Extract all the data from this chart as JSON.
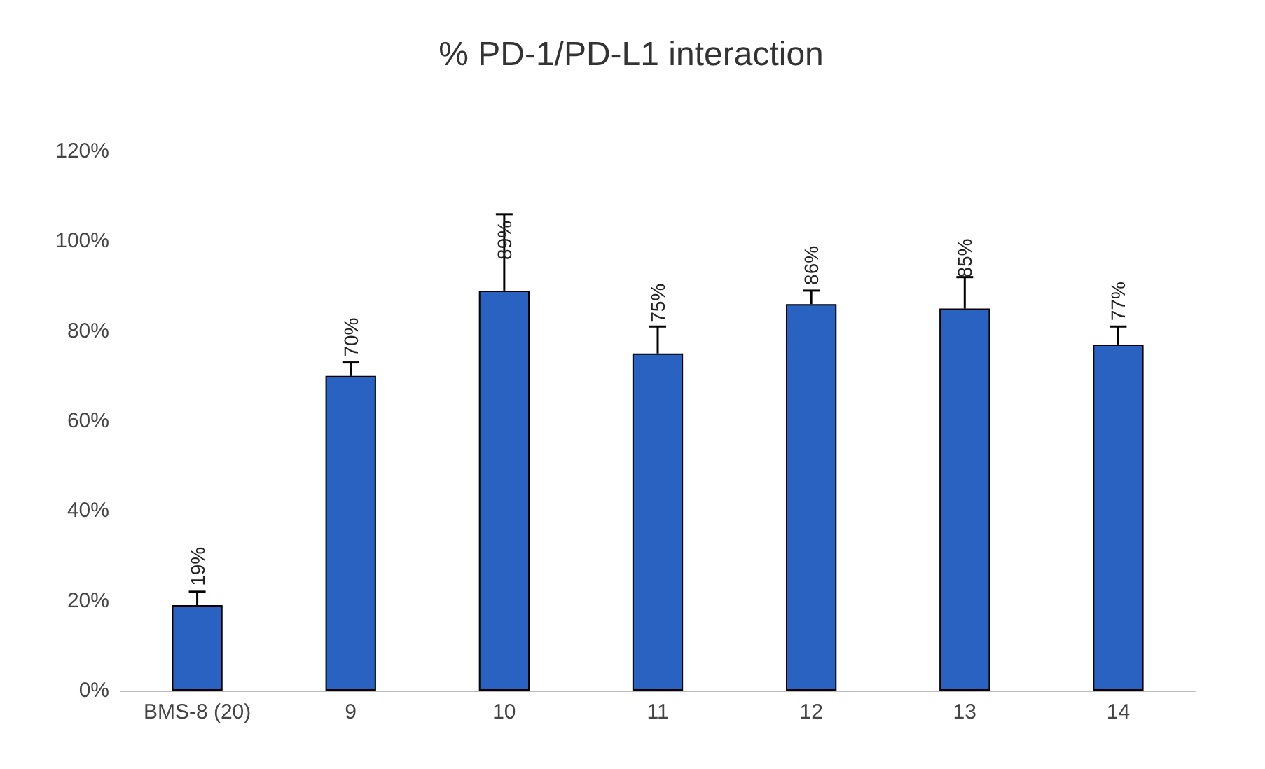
{
  "chart_data": {
    "type": "bar",
    "title": "% PD-1/PD-L1 interaction",
    "categories": [
      "BMS-8 (20)",
      "9",
      "10",
      "11",
      "12",
      "13",
      "14"
    ],
    "values": [
      19,
      70,
      89,
      75,
      86,
      85,
      77
    ],
    "color": "#2962c0",
    "errors": [
      [
        19,
        22
      ],
      [
        70,
        73
      ],
      [
        89,
        106
      ],
      [
        75,
        81
      ],
      [
        86,
        89
      ],
      [
        85,
        92
      ],
      [
        77,
        81
      ]
    ],
    "value_labels": [
      "19%",
      "70%",
      "89%",
      "75%",
      "86%",
      "85%",
      "77%"
    ],
    "ylim": [
      0,
      120
    ],
    "yticks": [
      {
        "value": 0,
        "label": "0%"
      },
      {
        "value": 20,
        "label": "20%"
      },
      {
        "value": 40,
        "label": "40%"
      },
      {
        "value": 60,
        "label": "60%"
      },
      {
        "value": 80,
        "label": "80%"
      },
      {
        "value": 100,
        "label": "100%"
      },
      {
        "value": 120,
        "label": "120%"
      }
    ],
    "grid": false
  }
}
